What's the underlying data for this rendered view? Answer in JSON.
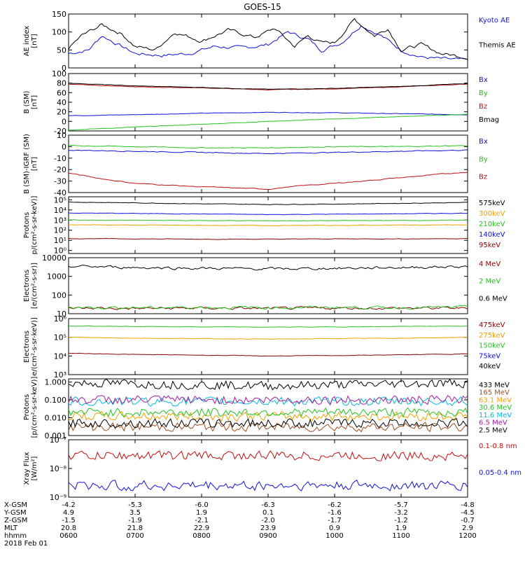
{
  "title": "GOES-15",
  "colors": {
    "black": "#000000",
    "blue": "#1010d8",
    "green": "#22c41e",
    "red": "#c01010",
    "orange": "#f0a000",
    "cyan": "#00b8e0",
    "purple": "#a020a0",
    "darkred": "#8b0000",
    "brown": "#a05020"
  },
  "chart_data": {
    "type": "line",
    "x": [
      "0600",
      "0700",
      "0800",
      "0900",
      "1000",
      "1100",
      "1200"
    ],
    "xlabel": "hhmm",
    "date": "2018 Feb 01",
    "ephemeris": [
      {
        "label": "X-GSM",
        "values": [
          "-4.2",
          "-5.3",
          "-6.0",
          "-6.3",
          "-6.2",
          "-5.7",
          "-4.8"
        ]
      },
      {
        "label": "Y-GSM",
        "values": [
          "4.9",
          "3.5",
          "1.9",
          "0.1",
          "-1.6",
          "-3.2",
          "-4.5"
        ]
      },
      {
        "label": "Z-GSM",
        "values": [
          "-1.5",
          "-1.9",
          "-2.1",
          "-2.0",
          "-1.7",
          "-1.2",
          "-0.7"
        ]
      },
      {
        "label": "MLT",
        "values": [
          "20.8",
          "21.8",
          "22.9",
          "23.9",
          "0.9",
          "1.9",
          "2.9"
        ]
      }
    ],
    "panels": [
      {
        "key": "ae",
        "ylabel": [
          "AE index",
          "[nT]"
        ],
        "scale": "linear",
        "ylim": [
          0,
          150
        ],
        "ticks": [
          0,
          50,
          100,
          150
        ],
        "tick_labels": [
          "0",
          "50",
          "100",
          "150"
        ],
        "series": [
          {
            "name": "Kyoto AE",
            "color": "blue",
            "x": [
              0,
              0.3,
              0.5,
              0.8,
              1.0,
              1.4,
              1.8,
              2.2,
              2.6,
              3.0,
              3.3,
              3.6,
              3.8,
              4.1,
              4.4,
              4.7,
              5.0,
              5.3,
              5.6,
              6.0
            ],
            "y": [
              40,
              50,
              90,
              60,
              40,
              35,
              40,
              60,
              55,
              65,
              100,
              80,
              50,
              70,
              120,
              90,
              50,
              30,
              25,
              20
            ]
          },
          {
            "name": "Themis AE",
            "color": "black",
            "x": [
              0,
              0.2,
              0.5,
              0.8,
              1.0,
              1.3,
              1.6,
              2.0,
              2.4,
              2.8,
              3.1,
              3.4,
              3.6,
              3.8,
              4.0,
              4.3,
              4.6,
              4.8,
              5.0,
              5.3,
              5.6,
              6.0
            ],
            "y": [
              55,
              90,
              120,
              95,
              60,
              50,
              100,
              75,
              105,
              85,
              110,
              60,
              90,
              70,
              70,
              135,
              90,
              110,
              50,
              65,
              40,
              30
            ]
          }
        ]
      },
      {
        "key": "bsm",
        "ylabel": [
          "B (SM)",
          "[nT]"
        ],
        "scale": "linear",
        "ylim": [
          -20,
          100
        ],
        "ticks": [
          -20,
          0,
          20,
          40,
          60,
          80,
          100
        ],
        "tick_labels": [
          "-20",
          "0",
          "20",
          "40",
          "60",
          "80",
          "100"
        ],
        "series": [
          {
            "name": "Bx",
            "color": "blue",
            "x": [
              0,
              1,
              2,
              3,
              4,
              5,
              6
            ],
            "y": [
              12,
              14,
              17,
              19,
              18,
              16,
              14
            ]
          },
          {
            "name": "By",
            "color": "green",
            "x": [
              0,
              1,
              2,
              3,
              4,
              5,
              6
            ],
            "y": [
              -18,
              -12,
              -6,
              0,
              5,
              10,
              15
            ]
          },
          {
            "name": "Bz",
            "color": "red",
            "x": [
              0,
              1,
              2,
              3,
              4,
              5,
              6
            ],
            "y": [
              78,
              72,
              70,
              66,
              68,
              72,
              78
            ]
          },
          {
            "name": "Bmag",
            "color": "black",
            "x": [
              0,
              1,
              2,
              3,
              4,
              5,
              6
            ],
            "y": [
              80,
              74,
              71,
              67,
              69,
              73,
              79
            ]
          }
        ]
      },
      {
        "key": "bigrf",
        "ylabel": [
          "B (SM)-IGRF (SM)",
          "[nT]"
        ],
        "scale": "linear",
        "ylim": [
          -40,
          10
        ],
        "ticks": [
          -40,
          -30,
          -20,
          -10,
          0,
          10
        ],
        "tick_labels": [
          "-40",
          "-30",
          "-20",
          "-10",
          "0",
          "10"
        ],
        "series": [
          {
            "name": "Bx",
            "color": "blue",
            "x": [
              0,
              1,
              2,
              3,
              4,
              5,
              6
            ],
            "y": [
              -3,
              -4,
              -5,
              -6,
              -5,
              -4,
              -3
            ]
          },
          {
            "name": "By",
            "color": "green",
            "x": [
              0,
              1,
              2,
              3,
              4,
              5,
              6
            ],
            "y": [
              1,
              0,
              -1,
              -1,
              0,
              0,
              1
            ]
          },
          {
            "name": "Bz",
            "color": "red",
            "x": [
              0,
              0.5,
              1,
              2,
              3,
              3.5,
              4,
              5,
              6
            ],
            "y": [
              -23,
              -28,
              -32,
              -35,
              -37,
              -34,
              -32,
              -27,
              -22
            ]
          }
        ]
      },
      {
        "key": "protons",
        "ylabel": [
          "Protons",
          "p/(cm²-s-sr-keV)]"
        ],
        "scale": "log",
        "ylim": [
          0.5,
          200000
        ],
        "ticks": [
          1,
          10,
          100,
          1000,
          10000,
          100000
        ],
        "tick_labels": [
          "10⁰",
          "10¹",
          "10²",
          "10³",
          "10⁴",
          "10⁵"
        ],
        "series": [
          {
            "name": "575keV",
            "color": "black",
            "x": [
              0,
              1,
              2,
              3,
              4,
              5,
              6
            ],
            "y": [
              60000,
              50000,
              40000,
              35000,
              38000,
              45000,
              55000
            ]
          },
          {
            "name": "300keV",
            "color": "orange",
            "x": [
              0,
              1,
              2,
              3,
              4,
              5,
              6
            ],
            "y": [
              350,
              320,
              300,
              290,
              300,
              320,
              340
            ]
          },
          {
            "name": "210keV",
            "color": "green",
            "x": [
              0,
              1,
              2,
              3,
              4,
              5,
              6
            ],
            "y": [
              1000,
              950,
              900,
              850,
              880,
              920,
              980
            ]
          },
          {
            "name": "140keV",
            "color": "blue",
            "x": [
              0,
              1,
              2,
              3,
              4,
              5,
              6
            ],
            "y": [
              5000,
              4500,
              4000,
              3500,
              3800,
              4200,
              4800
            ]
          },
          {
            "name": "95keV",
            "color": "darkred",
            "x": [
              0,
              1,
              2,
              3,
              4,
              5,
              6
            ],
            "y": [
              15,
              14,
              13,
              13,
              14,
              14,
              15
            ]
          }
        ]
      },
      {
        "key": "electrons_mev",
        "ylabel": [
          "Electrons",
          "[e/(cm²-s-sr)]"
        ],
        "scale": "log",
        "ylim": [
          10,
          10000
        ],
        "ticks": [
          10,
          100,
          1000,
          10000
        ],
        "tick_labels": [
          "10",
          "100",
          "1000",
          "10000"
        ],
        "series": [
          {
            "name": "4 MeV",
            "color": "darkred",
            "x": [
              0,
              1,
              2,
              3,
              4,
              5,
              6
            ],
            "y": [
              20,
              19,
              20,
              19,
              20,
              20,
              20
            ]
          },
          {
            "name": "2 MeV",
            "color": "green",
            "x": [
              0,
              1,
              2,
              3,
              4,
              5,
              6
            ],
            "y": [
              22,
              21,
              22,
              21,
              22,
              21,
              22
            ]
          },
          {
            "name": "0.6 MeV",
            "color": "black",
            "x": [
              0,
              1,
              2,
              3,
              4,
              5,
              6
            ],
            "y": [
              3500,
              3000,
              2700,
              2500,
              2700,
              3000,
              3400
            ]
          }
        ]
      },
      {
        "key": "electrons_kev",
        "ylabel": [
          "Electrons",
          "e/(cm²-s-sr-keV)]"
        ],
        "scale": "log",
        "ylim": [
          1000,
          1000000
        ],
        "ticks": [
          1000,
          10000,
          100000,
          1000000
        ],
        "tick_labels": [
          "10³",
          "10⁴",
          "10⁵",
          "10⁶"
        ],
        "series": [
          {
            "name": "475keV",
            "color": "darkred",
            "x": [
              0,
              1,
              2,
              3,
              4,
              5,
              6
            ],
            "y": [
              14000,
              12000,
              11000,
              10000,
              10500,
              11500,
              13000
            ]
          },
          {
            "name": "275keV",
            "color": "orange",
            "x": [
              0,
              1,
              2,
              3,
              4,
              5,
              6
            ],
            "y": [
              100000,
              90000,
              85000,
              80000,
              85000,
              90000,
              100000
            ]
          },
          {
            "name": "150keV",
            "color": "green",
            "x": [
              0,
              1,
              2,
              3,
              4,
              5,
              6
            ],
            "y": [
              400000,
              380000,
              360000,
              350000,
              360000,
              380000,
              400000
            ]
          },
          {
            "name": "75keV",
            "color": "blue",
            "x": [
              0,
              6
            ],
            "y": [
              0,
              0
            ]
          },
          {
            "name": "40keV",
            "color": "black",
            "x": [
              0,
              6
            ],
            "y": [
              0,
              0
            ]
          }
        ]
      },
      {
        "key": "protons_mev",
        "ylabel": [
          "Protons",
          "[p/(cm²-s-sr-keV)]"
        ],
        "scale": "log",
        "ylim": [
          0.001,
          1.5
        ],
        "ticks": [
          0.001,
          0.01,
          0.1,
          1
        ],
        "tick_labels": [
          "0.001",
          "0.010",
          "0.100",
          "1.000"
        ],
        "series": [
          {
            "name": "433 MeV",
            "color": "black",
            "x": [
              0,
              1,
              2,
              3,
              4,
              5,
              6
            ],
            "y": [
              0.9,
              0.8,
              0.7,
              0.6,
              0.7,
              0.8,
              0.9
            ]
          },
          {
            "name": "165 MeV",
            "color": "brown",
            "x": [
              0,
              6
            ],
            "y": [
              0.003,
              0.003
            ]
          },
          {
            "name": "63.1 MeV",
            "color": "orange",
            "x": [
              0,
              6
            ],
            "y": [
              0.012,
              0.012
            ]
          },
          {
            "name": "30.6 MeV",
            "color": "green",
            "x": [
              0,
              6
            ],
            "y": [
              0.02,
              0.02
            ]
          },
          {
            "name": "11.6 MeV",
            "color": "cyan",
            "x": [
              0,
              6
            ],
            "y": [
              0.08,
              0.08
            ]
          },
          {
            "name": "6.5 MeV",
            "color": "purple",
            "x": [
              0,
              6
            ],
            "y": [
              0.1,
              0.1
            ]
          },
          {
            "name": "2.5 MeV",
            "color": "black",
            "x": [
              0,
              6
            ],
            "y": [
              0.005,
              0.005
            ]
          }
        ]
      },
      {
        "key": "xray",
        "ylabel": [
          "Xray Flux",
          "[W/m²]"
        ],
        "scale": "log",
        "ylim": [
          1e-09,
          1e-07
        ],
        "ticks": [
          1e-09,
          1e-08,
          1e-07
        ],
        "tick_labels": [
          "10⁻⁹",
          "10⁻⁸",
          "10⁻⁷"
        ],
        "series": [
          {
            "name": "0.1-0.8 nm",
            "color": "red",
            "x": [
              0,
              6
            ],
            "y": [
              2.8e-08,
              2.8e-08
            ]
          },
          {
            "name": "0.05-0.4 nm",
            "color": "blue",
            "x": [
              0,
              6
            ],
            "y": [
              2.5e-09,
              2.5e-09
            ]
          }
        ]
      }
    ]
  }
}
